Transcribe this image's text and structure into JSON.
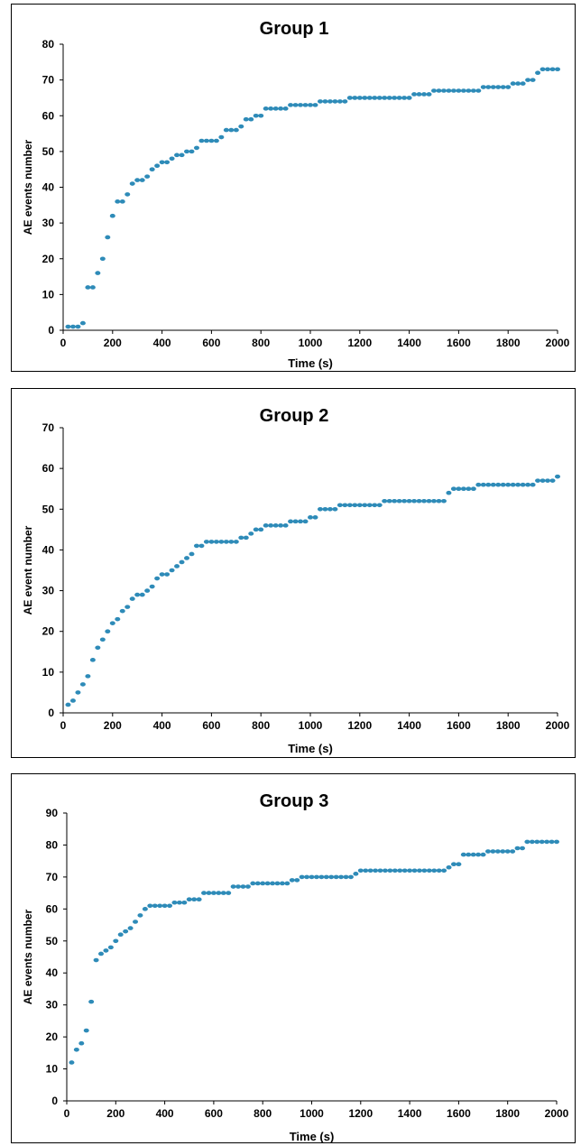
{
  "chart_data": [
    {
      "type": "scatter",
      "title": "Group 1",
      "xlabel": "Time (s)",
      "ylabel": "AE events number",
      "xlim": [
        0,
        2000
      ],
      "ylim": [
        0,
        80
      ],
      "xticks": [
        0,
        200,
        400,
        600,
        800,
        1000,
        1200,
        1400,
        1600,
        1800,
        2000
      ],
      "yticks": [
        0,
        10,
        20,
        30,
        40,
        50,
        60,
        70,
        80
      ],
      "grid": false,
      "marker_color": "#2e8bb8",
      "series": [
        {
          "x": [
            20,
            40,
            60,
            80,
            100,
            120,
            140,
            160,
            180,
            200,
            220,
            240,
            260,
            280,
            300,
            320,
            340,
            360,
            380,
            400,
            420,
            440,
            460,
            480,
            500,
            520,
            540,
            560,
            580,
            600,
            620,
            640,
            660,
            680,
            700,
            720,
            740,
            760,
            780,
            800,
            820,
            840,
            860,
            880,
            900,
            920,
            940,
            960,
            980,
            1000,
            1020,
            1040,
            1060,
            1080,
            1100,
            1120,
            1140,
            1160,
            1180,
            1200,
            1220,
            1240,
            1260,
            1280,
            1300,
            1320,
            1340,
            1360,
            1380,
            1400,
            1420,
            1440,
            1460,
            1480,
            1500,
            1520,
            1540,
            1560,
            1580,
            1600,
            1620,
            1640,
            1660,
            1680,
            1700,
            1720,
            1740,
            1760,
            1780,
            1800,
            1820,
            1840,
            1860,
            1880,
            1900,
            1920,
            1940,
            1960,
            1980,
            2000
          ],
          "y": [
            1,
            1,
            1,
            2,
            12,
            12,
            16,
            20,
            26,
            32,
            36,
            36,
            38,
            41,
            42,
            42,
            43,
            45,
            46,
            47,
            47,
            48,
            49,
            49,
            50,
            50,
            51,
            53,
            53,
            53,
            53,
            54,
            56,
            56,
            56,
            57,
            59,
            59,
            60,
            60,
            62,
            62,
            62,
            62,
            62,
            63,
            63,
            63,
            63,
            63,
            63,
            64,
            64,
            64,
            64,
            64,
            64,
            65,
            65,
            65,
            65,
            65,
            65,
            65,
            65,
            65,
            65,
            65,
            65,
            65,
            66,
            66,
            66,
            66,
            67,
            67,
            67,
            67,
            67,
            67,
            67,
            67,
            67,
            67,
            68,
            68,
            68,
            68,
            68,
            68,
            69,
            69,
            69,
            70,
            70,
            72,
            73,
            73,
            73,
            73
          ]
        }
      ]
    },
    {
      "type": "scatter",
      "title": "Group 2",
      "xlabel": "Time (s)",
      "ylabel": "AE event number",
      "xlim": [
        0,
        2000
      ],
      "ylim": [
        0,
        70
      ],
      "xticks": [
        0,
        200,
        400,
        600,
        800,
        1000,
        1200,
        1400,
        1600,
        1800,
        2000
      ],
      "yticks": [
        0,
        10,
        20,
        30,
        40,
        50,
        60,
        70
      ],
      "grid": false,
      "marker_color": "#2e8bb8",
      "series": [
        {
          "x": [
            20,
            40,
            60,
            80,
            100,
            120,
            140,
            160,
            180,
            200,
            220,
            240,
            260,
            280,
            300,
            320,
            340,
            360,
            380,
            400,
            420,
            440,
            460,
            480,
            500,
            520,
            540,
            560,
            580,
            600,
            620,
            640,
            660,
            680,
            700,
            720,
            740,
            760,
            780,
            800,
            820,
            840,
            860,
            880,
            900,
            920,
            940,
            960,
            980,
            1000,
            1020,
            1040,
            1060,
            1080,
            1100,
            1120,
            1140,
            1160,
            1180,
            1200,
            1220,
            1240,
            1260,
            1280,
            1300,
            1320,
            1340,
            1360,
            1380,
            1400,
            1420,
            1440,
            1460,
            1480,
            1500,
            1520,
            1540,
            1560,
            1580,
            1600,
            1620,
            1640,
            1660,
            1680,
            1700,
            1720,
            1740,
            1760,
            1780,
            1800,
            1820,
            1840,
            1860,
            1880,
            1900,
            1920,
            1940,
            1960,
            1980,
            2000
          ],
          "y": [
            2,
            3,
            5,
            7,
            9,
            13,
            16,
            18,
            20,
            22,
            23,
            25,
            26,
            28,
            29,
            29,
            30,
            31,
            33,
            34,
            34,
            35,
            36,
            37,
            38,
            39,
            41,
            41,
            42,
            42,
            42,
            42,
            42,
            42,
            42,
            43,
            43,
            44,
            45,
            45,
            46,
            46,
            46,
            46,
            46,
            47,
            47,
            47,
            47,
            48,
            48,
            50,
            50,
            50,
            50,
            51,
            51,
            51,
            51,
            51,
            51,
            51,
            51,
            51,
            52,
            52,
            52,
            52,
            52,
            52,
            52,
            52,
            52,
            52,
            52,
            52,
            52,
            54,
            55,
            55,
            55,
            55,
            55,
            56,
            56,
            56,
            56,
            56,
            56,
            56,
            56,
            56,
            56,
            56,
            56,
            57,
            57,
            57,
            57,
            58
          ]
        }
      ]
    },
    {
      "type": "scatter",
      "title": "Group  3",
      "xlabel": "Time (s)",
      "ylabel": "AE events number",
      "xlim": [
        0,
        2000
      ],
      "ylim": [
        0,
        90
      ],
      "xticks": [
        0,
        200,
        400,
        600,
        800,
        1000,
        1200,
        1400,
        1600,
        1800,
        2000
      ],
      "yticks": [
        0,
        10,
        20,
        30,
        40,
        50,
        60,
        70,
        80,
        90
      ],
      "grid": false,
      "marker_color": "#2e8bb8",
      "series": [
        {
          "x": [
            20,
            40,
            60,
            80,
            100,
            120,
            140,
            160,
            180,
            200,
            220,
            240,
            260,
            280,
            300,
            320,
            340,
            360,
            380,
            400,
            420,
            440,
            460,
            480,
            500,
            520,
            540,
            560,
            580,
            600,
            620,
            640,
            660,
            680,
            700,
            720,
            740,
            760,
            780,
            800,
            820,
            840,
            860,
            880,
            900,
            920,
            940,
            960,
            980,
            1000,
            1020,
            1040,
            1060,
            1080,
            1100,
            1120,
            1140,
            1160,
            1180,
            1200,
            1220,
            1240,
            1260,
            1280,
            1300,
            1320,
            1340,
            1360,
            1380,
            1400,
            1420,
            1440,
            1460,
            1480,
            1500,
            1520,
            1540,
            1560,
            1580,
            1600,
            1620,
            1640,
            1660,
            1680,
            1700,
            1720,
            1740,
            1760,
            1780,
            1800,
            1820,
            1840,
            1860,
            1880,
            1900,
            1920,
            1940,
            1960,
            1980,
            2000
          ],
          "y": [
            12,
            16,
            18,
            22,
            31,
            44,
            46,
            47,
            48,
            50,
            52,
            53,
            54,
            56,
            58,
            60,
            61,
            61,
            61,
            61,
            61,
            62,
            62,
            62,
            63,
            63,
            63,
            65,
            65,
            65,
            65,
            65,
            65,
            67,
            67,
            67,
            67,
            68,
            68,
            68,
            68,
            68,
            68,
            68,
            68,
            69,
            69,
            70,
            70,
            70,
            70,
            70,
            70,
            70,
            70,
            70,
            70,
            70,
            71,
            72,
            72,
            72,
            72,
            72,
            72,
            72,
            72,
            72,
            72,
            72,
            72,
            72,
            72,
            72,
            72,
            72,
            72,
            73,
            74,
            74,
            77,
            77,
            77,
            77,
            77,
            78,
            78,
            78,
            78,
            78,
            78,
            79,
            79,
            81,
            81,
            81,
            81,
            81,
            81,
            81
          ]
        }
      ]
    }
  ]
}
